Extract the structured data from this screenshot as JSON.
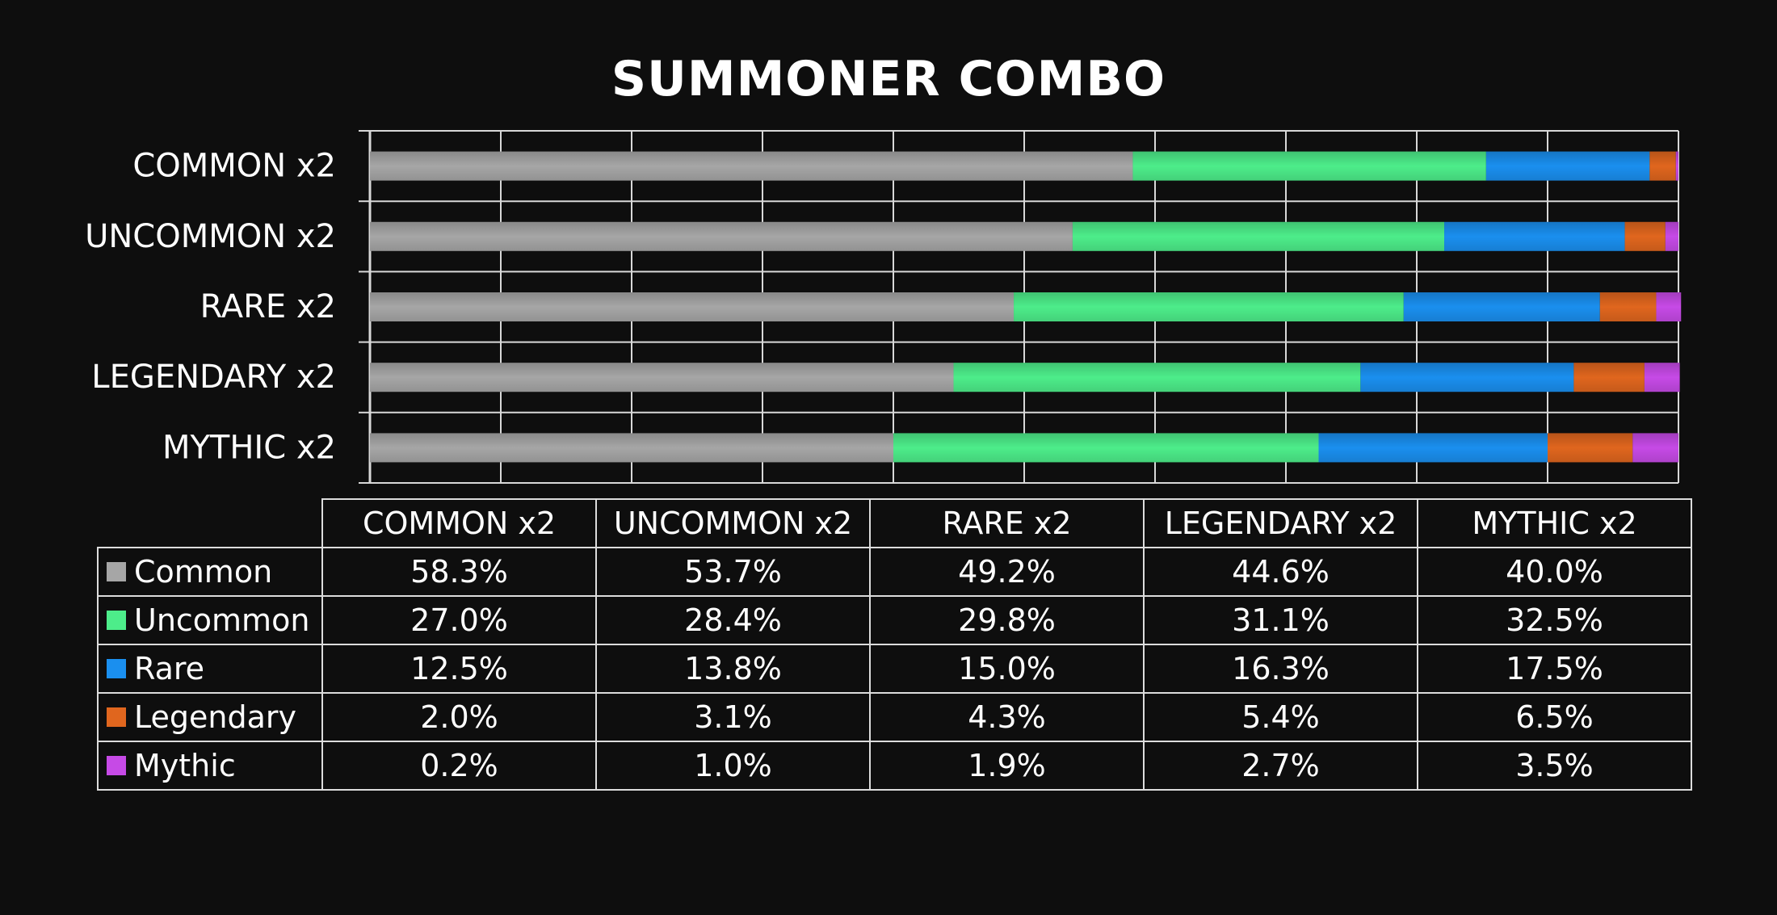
{
  "chart_data": {
    "type": "bar",
    "orientation": "horizontal",
    "stacked": true,
    "title": "SUMMONER COMBO",
    "categories": [
      "COMMON x2",
      "UNCOMMON x2",
      "RARE x2",
      "LEGENDARY x2",
      "MYTHIC x2"
    ],
    "series": [
      {
        "name": "Common",
        "color": "#a6a6a6",
        "values": [
          58.3,
          53.7,
          49.2,
          44.6,
          40.0
        ],
        "labels": [
          "58.3%",
          "53.7%",
          "49.2%",
          "44.6%",
          "40.0%"
        ]
      },
      {
        "name": "Uncommon",
        "color": "#4ded8a",
        "values": [
          27.0,
          28.4,
          29.8,
          31.1,
          32.5
        ],
        "labels": [
          "27.0%",
          "28.4%",
          "29.8%",
          "31.1%",
          "32.5%"
        ]
      },
      {
        "name": "Rare",
        "color": "#1a8fef",
        "values": [
          12.5,
          13.8,
          15.0,
          16.3,
          17.5
        ],
        "labels": [
          "12.5%",
          "13.8%",
          "15.0%",
          "16.3%",
          "17.5%"
        ]
      },
      {
        "name": "Legendary",
        "color": "#e0661e",
        "values": [
          2.0,
          3.1,
          4.3,
          5.4,
          6.5
        ],
        "labels": [
          "2.0%",
          "3.1%",
          "4.3%",
          "5.4%",
          "6.5%"
        ]
      },
      {
        "name": "Mythic",
        "color": "#c64ae6",
        "values": [
          0.2,
          1.0,
          1.9,
          2.7,
          3.5
        ],
        "labels": [
          "0.2%",
          "1.0%",
          "1.9%",
          "2.7%",
          "3.5%"
        ]
      }
    ],
    "xlim": [
      0,
      100
    ],
    "grid": true,
    "legend": "data-table-below"
  }
}
